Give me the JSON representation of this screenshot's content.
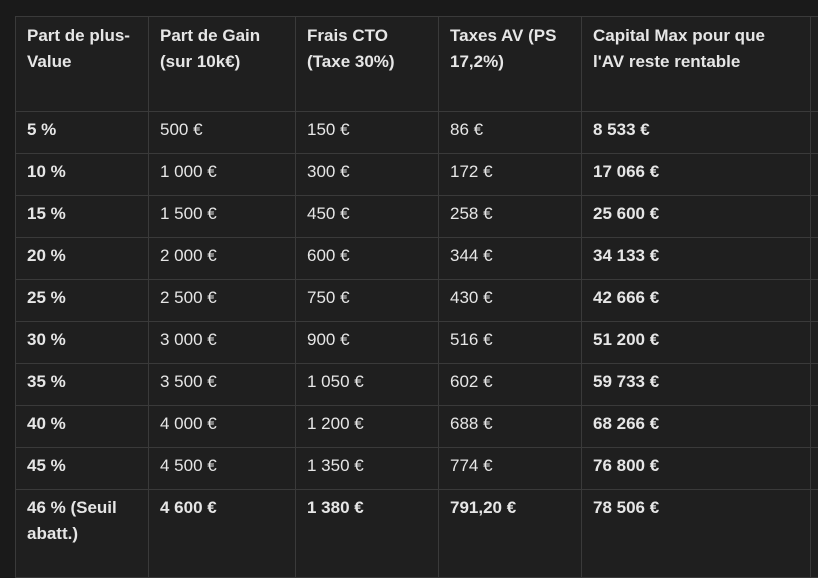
{
  "table": {
    "headers": [
      "Part de plus-Value",
      "Part de Gain (sur 10k€)",
      "Frais CTO (Taxe 30%)",
      "Taxes AV (PS 17,2%)",
      "Capital Max pour que l'AV reste rentable",
      ""
    ],
    "rows": [
      [
        "5 %",
        "500 €",
        "150 €",
        "86 €",
        "8 533 €"
      ],
      [
        "10 %",
        "1 000 €",
        "300 €",
        "172 €",
        "17 066 €"
      ],
      [
        "15 %",
        "1 500 €",
        "450 €",
        "258 €",
        "25 600 €"
      ],
      [
        "20 %",
        "2 000 €",
        "600 €",
        "344 €",
        "34 133 €"
      ],
      [
        "25 %",
        "2 500 €",
        "750 €",
        "430 €",
        "42 666 €"
      ],
      [
        "30 %",
        "3 000 €",
        "900 €",
        "516 €",
        "51 200 €"
      ],
      [
        "35 %",
        "3 500 €",
        "1 050 €",
        "602 €",
        "59 733 €"
      ],
      [
        "40 %",
        "4 000 €",
        "1 200 €",
        "688 €",
        "68 266 €"
      ],
      [
        "45 %",
        "4 500 €",
        "1 350 €",
        "774 €",
        "76 800 €"
      ],
      [
        "46 % (Seuil abatt.)",
        "4 600 €",
        "1 380 €",
        "791,20 €",
        "78 506 €"
      ]
    ]
  }
}
